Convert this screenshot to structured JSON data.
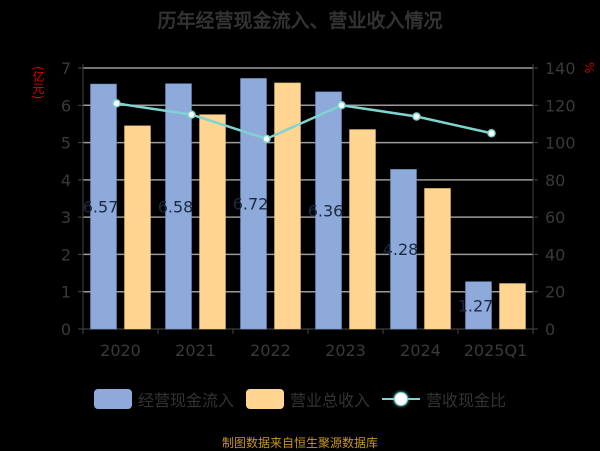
{
  "title": "历年经营现金流入、营业收入情况",
  "left_unit": "(亿元)",
  "right_unit": "%",
  "legend": {
    "series1": "经营现金流入",
    "series2": "营业总收入",
    "series3": "营收现金比"
  },
  "footer": "制图数据来自恒生聚源数据库",
  "colors": {
    "cash_inflow": "#8eaadb",
    "revenue": "#ffd591",
    "ratio_line": "#7fd3d0",
    "background": "#000000",
    "footer": "#c8961e"
  },
  "chart_data": {
    "type": "bar",
    "title": "历年经营现金流入、营业收入情况",
    "categories": [
      "2020",
      "2021",
      "2022",
      "2023",
      "2024",
      "2025Q1"
    ],
    "series": [
      {
        "name": "经营现金流入",
        "type": "bar",
        "axis": "left",
        "values": [
          6.57,
          6.58,
          6.72,
          6.36,
          4.28,
          1.27
        ]
      },
      {
        "name": "营业总收入",
        "type": "bar",
        "axis": "left",
        "values": [
          5.45,
          5.75,
          6.6,
          5.35,
          3.77,
          1.22
        ]
      },
      {
        "name": "营收现金比",
        "type": "line",
        "axis": "right",
        "values": [
          121,
          115,
          102,
          120,
          114,
          105
        ]
      }
    ],
    "bar_labels": [
      "6.57",
      "6.58",
      "6.72",
      "6.36",
      "4.28",
      "1.27"
    ],
    "xlabel": "",
    "ylabel_left": "(亿元)",
    "ylabel_right": "%",
    "ylim_left": [
      0,
      7
    ],
    "ylim_right": [
      0,
      140
    ],
    "yticks_left": [
      "0",
      "1",
      "2",
      "3",
      "4",
      "5",
      "6",
      "7"
    ],
    "yticks_right": [
      "0",
      "20",
      "40",
      "60",
      "80",
      "100",
      "120",
      "140"
    ],
    "grid": true,
    "legend_position": "bottom"
  }
}
